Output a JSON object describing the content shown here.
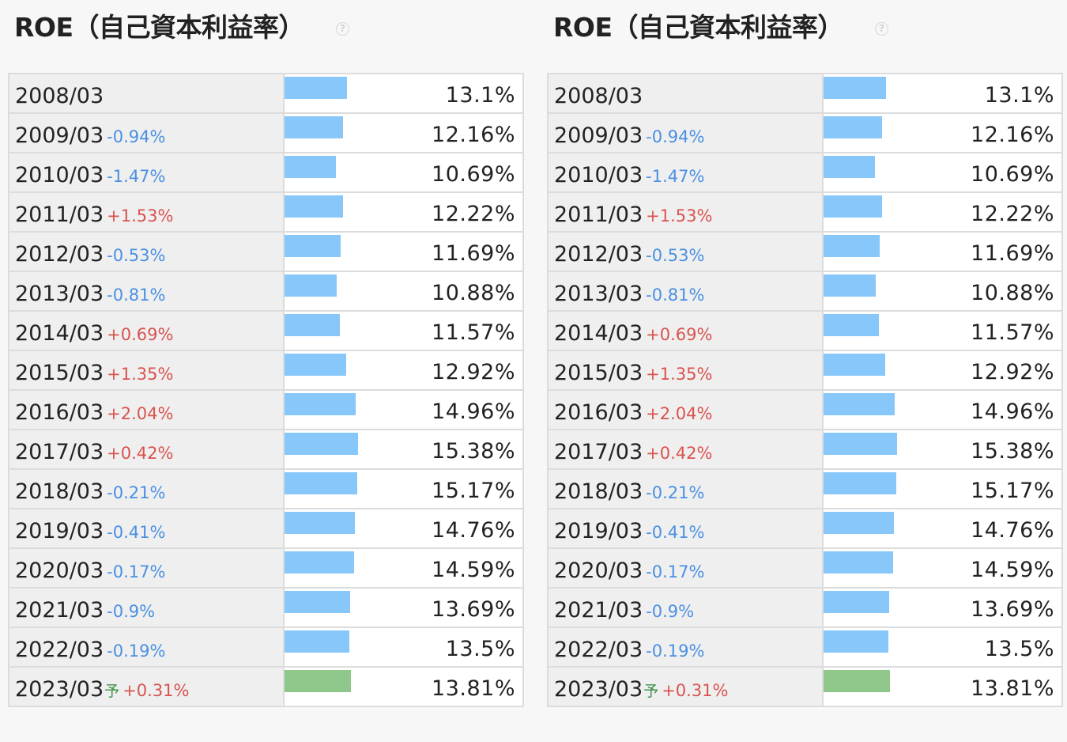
{
  "panels": [
    {
      "title": "ROE（自己資本利益率）",
      "help_icon": "question-circle-icon"
    },
    {
      "title": "ROE（自己資本利益率）",
      "help_icon": "question-circle-icon"
    }
  ],
  "colors": {
    "bar_actual": "#87c7f9",
    "bar_forecast": "#8fc78a",
    "diff_negative": "#4a90e2",
    "diff_positive": "#d9534f",
    "forecast_mark": "#3d8f46"
  },
  "chart_data": {
    "type": "bar",
    "orientation": "horizontal",
    "title": "ROE（自己資本利益率）",
    "unit": "%",
    "categories": [
      "2008/03",
      "2009/03",
      "2010/03",
      "2011/03",
      "2012/03",
      "2013/03",
      "2014/03",
      "2015/03",
      "2016/03",
      "2017/03",
      "2018/03",
      "2019/03",
      "2020/03",
      "2021/03",
      "2022/03",
      "2023/03"
    ],
    "values": [
      13.1,
      12.16,
      10.69,
      12.22,
      11.69,
      10.88,
      11.57,
      12.92,
      14.96,
      15.38,
      15.17,
      14.76,
      14.59,
      13.69,
      13.5,
      13.81
    ],
    "value_labels": [
      "13.1%",
      "12.16%",
      "10.69%",
      "12.22%",
      "11.69%",
      "10.88%",
      "11.57%",
      "12.92%",
      "14.96%",
      "15.38%",
      "15.17%",
      "14.76%",
      "14.59%",
      "13.69%",
      "13.5%",
      "13.81%"
    ],
    "changes": [
      "",
      "-0.94%",
      "-1.47%",
      "+1.53%",
      "-0.53%",
      "-0.81%",
      "+0.69%",
      "+1.35%",
      "+2.04%",
      "+0.42%",
      "-0.21%",
      "-0.41%",
      "-0.17%",
      "-0.9%",
      "-0.19%",
      "+0.31%"
    ],
    "forecast": [
      false,
      false,
      false,
      false,
      false,
      false,
      false,
      false,
      false,
      false,
      false,
      false,
      false,
      false,
      false,
      true
    ],
    "forecast_mark": "予"
  }
}
